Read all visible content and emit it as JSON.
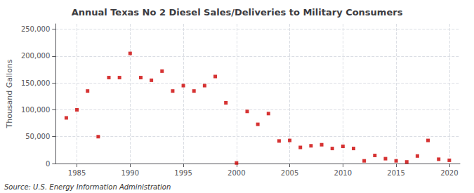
{
  "chart_data": {
    "type": "scatter",
    "title": "Annual Texas No 2 Diesel Sales/Deliveries to Military Consumers",
    "y_label": "Thousand Gallons",
    "annotations": [
      "Source: U.S. Energy Information Administration"
    ],
    "x": [
      1984,
      1985,
      1986,
      1987,
      1988,
      1989,
      1990,
      1991,
      1992,
      1993,
      1994,
      1995,
      1996,
      1997,
      1998,
      1999,
      2000,
      2001,
      2002,
      2003,
      2004,
      2005,
      2006,
      2007,
      2008,
      2009,
      2010,
      2011,
      2012,
      2013,
      2014,
      2015,
      2016,
      2017,
      2018,
      2019,
      2020
    ],
    "values": [
      85000,
      100000,
      135000,
      50000,
      160000,
      160000,
      205000,
      160000,
      155000,
      172000,
      135000,
      145000,
      135000,
      145000,
      162000,
      113000,
      1000,
      97000,
      73000,
      93000,
      42000,
      43000,
      30000,
      33000,
      35000,
      28000,
      32000,
      28000,
      5000,
      15000,
      9000,
      5000,
      3000,
      14000,
      43000,
      8000,
      6000
    ],
    "color": "#cc0000",
    "marker": "square",
    "xlim": [
      1983,
      2021
    ],
    "xticks": [
      1985,
      1990,
      1995,
      2000,
      2005,
      2010,
      2015,
      2020
    ],
    "ylim": [
      0,
      260000
    ],
    "yticks": [
      {
        "value": 0,
        "label": "0"
      },
      {
        "value": 50000,
        "label": "50,000"
      },
      {
        "value": 100000,
        "label": "100,000"
      },
      {
        "value": 150000,
        "label": "150,000"
      },
      {
        "value": 200000,
        "label": "200,000"
      },
      {
        "value": 250000,
        "label": "250,000"
      }
    ],
    "grid": true
  }
}
